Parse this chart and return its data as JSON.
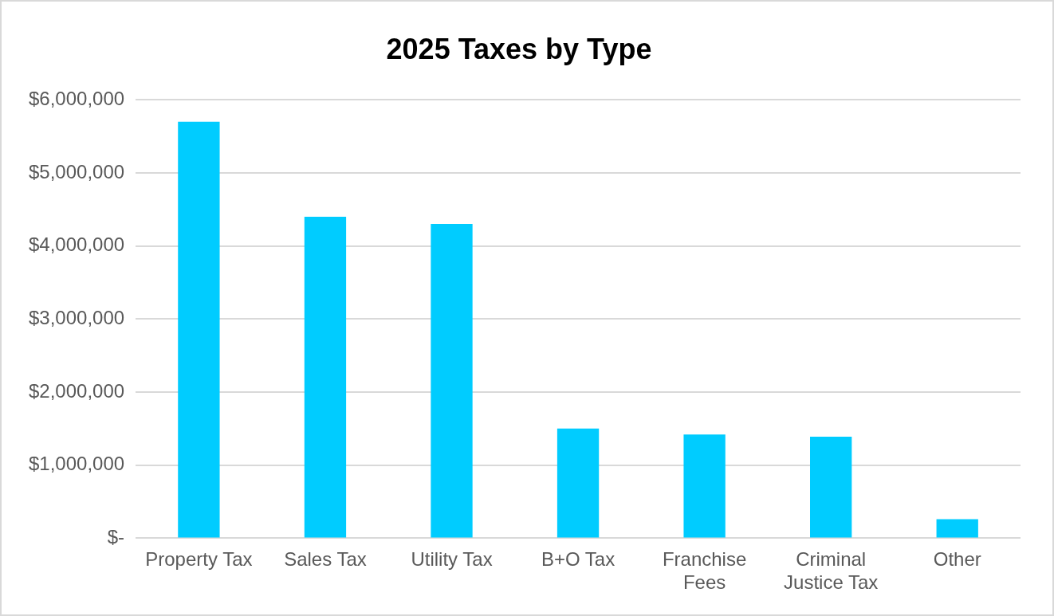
{
  "chart_data": {
    "type": "bar",
    "title": "2025 Taxes by Type",
    "categories": [
      "Property Tax",
      "Sales Tax",
      "Utility Tax",
      "B+O Tax",
      "Franchise Fees",
      "Criminal Justice Tax",
      "Other"
    ],
    "values": [
      5700000,
      4400000,
      4300000,
      1500000,
      1420000,
      1390000,
      260000
    ],
    "color": "#00ccff",
    "ylim": [
      0,
      6000000
    ],
    "yticks": [
      {
        "value": 0,
        "label": "$-"
      },
      {
        "value": 1000000,
        "label": "$1,000,000"
      },
      {
        "value": 2000000,
        "label": "$2,000,000"
      },
      {
        "value": 3000000,
        "label": "$3,000,000"
      },
      {
        "value": 4000000,
        "label": "$4,000,000"
      },
      {
        "value": 5000000,
        "label": "$5,000,000"
      },
      {
        "value": 6000000,
        "label": "$6,000,000"
      }
    ],
    "grid": "y",
    "legend": false
  }
}
